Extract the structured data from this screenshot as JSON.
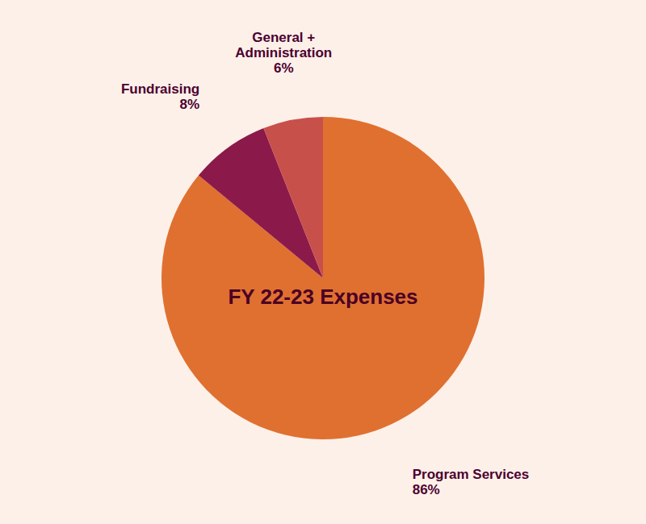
{
  "chart_data": {
    "type": "pie",
    "title": "FY 22-23 Expenses",
    "categories": [
      "Program Services",
      "Fundraising",
      "General +\nAdministration"
    ],
    "values": [
      86,
      8,
      6
    ],
    "value_labels": [
      "86%",
      "8%",
      "6%"
    ],
    "colors": [
      "#E07030",
      "#8B1A4A",
      "#C8504A"
    ],
    "data_labels": true
  }
}
